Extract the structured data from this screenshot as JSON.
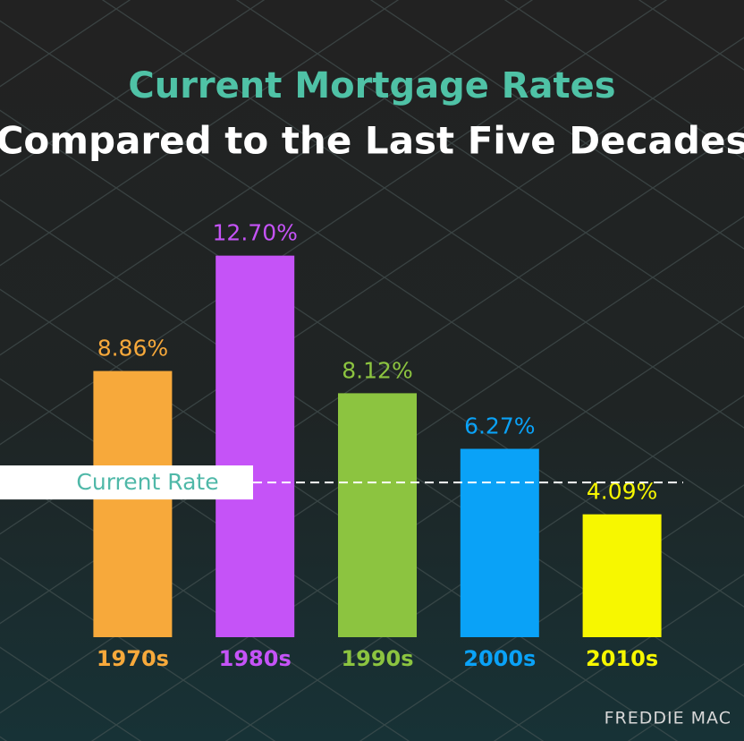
{
  "chart_data": {
    "type": "bar",
    "title": "Current Mortgage Rates",
    "subtitle": "Compared to the Last Five Decades",
    "categories": [
      "1970s",
      "1980s",
      "1990s",
      "2000s",
      "2010s"
    ],
    "values": [
      8.86,
      12.7,
      8.12,
      6.27,
      4.09
    ],
    "value_labels": [
      "8.86%",
      "12.70%",
      "8.12%",
      "6.27%",
      "4.09%"
    ],
    "colors": [
      "#f7a93b",
      "#c553f7",
      "#8cc440",
      "#0aa2f7",
      "#f7f700"
    ],
    "ylim": [
      0,
      14
    ],
    "reference_line": {
      "label": "Current Rate",
      "value": 5.15
    },
    "source": "FREDDIE MAC"
  }
}
